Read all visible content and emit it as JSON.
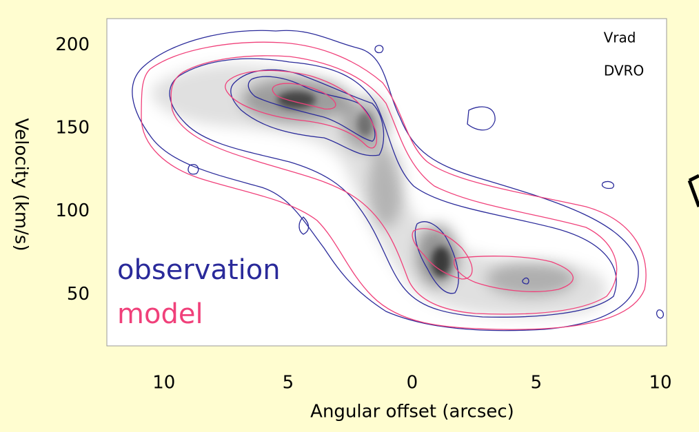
{
  "chart_data": {
    "type": "contour",
    "x_label": "Angular offset (arcsec)",
    "y_label": "Velocity (km/s)",
    "xlim": [
      -12.3,
      10.25
    ],
    "ylim": [
      19,
      216
    ],
    "xticks": [
      {
        "value": -10,
        "label": "10"
      },
      {
        "value": -5,
        "label": "5"
      },
      0,
      5,
      10
    ],
    "yticks": [
      50,
      100,
      150,
      200
    ],
    "annotations": [
      "Vrad",
      "DVRO"
    ],
    "series": [
      {
        "name": "observation",
        "color": "#2a2a9a"
      },
      {
        "name": "model",
        "color": "#f0407a"
      }
    ]
  }
}
